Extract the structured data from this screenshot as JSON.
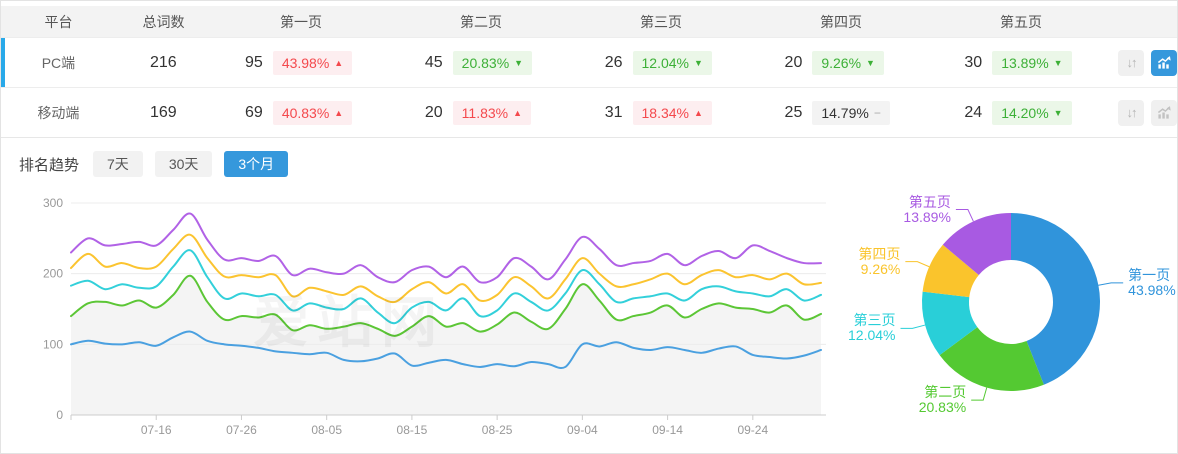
{
  "table": {
    "headers": [
      "平台",
      "总词数",
      "第一页",
      "第二页",
      "第三页",
      "第四页",
      "第五页"
    ],
    "sort_icon_glyph": "↓↑",
    "rows": [
      {
        "platform": "PC端",
        "total": "216",
        "chart_active": true,
        "pages": [
          {
            "count": "95",
            "pct": "43.98%",
            "arrow": "▲",
            "trend": "up"
          },
          {
            "count": "45",
            "pct": "20.83%",
            "arrow": "▼",
            "trend": "down"
          },
          {
            "count": "26",
            "pct": "12.04%",
            "arrow": "▼",
            "trend": "down"
          },
          {
            "count": "20",
            "pct": "9.26%",
            "arrow": "▼",
            "trend": "down"
          },
          {
            "count": "30",
            "pct": "13.89%",
            "arrow": "▼",
            "trend": "down"
          }
        ]
      },
      {
        "platform": "移动端",
        "total": "169",
        "chart_active": false,
        "pages": [
          {
            "count": "69",
            "pct": "40.83%",
            "arrow": "▲",
            "trend": "up"
          },
          {
            "count": "20",
            "pct": "11.83%",
            "arrow": "▲",
            "trend": "up"
          },
          {
            "count": "31",
            "pct": "18.34%",
            "arrow": "▲",
            "trend": "up"
          },
          {
            "count": "25",
            "pct": "14.79%",
            "arrow": "−",
            "trend": "flat"
          },
          {
            "count": "24",
            "pct": "14.20%",
            "arrow": "▼",
            "trend": "down"
          }
        ]
      }
    ]
  },
  "trend": {
    "label": "排名趋势",
    "tabs": [
      {
        "label": "7天",
        "active": false
      },
      {
        "label": "30天",
        "active": false
      },
      {
        "label": "3个月",
        "active": true
      }
    ]
  },
  "watermark": "爱站网",
  "chart_data": [
    {
      "type": "line",
      "title": "排名趋势 3个月",
      "ylim": [
        0,
        300
      ],
      "y_ticks": [
        0,
        100,
        200,
        300
      ],
      "grid": "horizontal",
      "x_labels": [
        "07-16",
        "07-26",
        "08-05",
        "08-15",
        "08-25",
        "09-04",
        "09-14",
        "09-24"
      ],
      "x_label_indices": [
        5,
        10,
        15,
        20,
        25,
        30,
        35,
        40
      ],
      "series": [
        {
          "name": "第一页",
          "color": "#4aa0e0",
          "area": false,
          "values": [
            100,
            105,
            101,
            100,
            103,
            98,
            110,
            118,
            105,
            100,
            98,
            95,
            90,
            88,
            86,
            88,
            78,
            76,
            80,
            87,
            70,
            74,
            78,
            72,
            68,
            72,
            69,
            75,
            72,
            68,
            100,
            97,
            103,
            95,
            92,
            96,
            92,
            88,
            94,
            97,
            85,
            82,
            80,
            84,
            92
          ]
        },
        {
          "name": "第二页",
          "color": "#5cc636",
          "area": true,
          "values": [
            140,
            158,
            160,
            155,
            162,
            152,
            170,
            197,
            160,
            135,
            140,
            138,
            142,
            120,
            127,
            122,
            125,
            130,
            122,
            112,
            125,
            140,
            125,
            130,
            118,
            128,
            145,
            132,
            122,
            150,
            185,
            162,
            135,
            140,
            145,
            155,
            138,
            150,
            158,
            152,
            150,
            145,
            155,
            135,
            143
          ]
        },
        {
          "name": "第三页",
          "color": "#33d0da",
          "area": false,
          "values": [
            183,
            190,
            178,
            185,
            180,
            182,
            210,
            233,
            195,
            165,
            172,
            168,
            170,
            148,
            158,
            152,
            150,
            165,
            145,
            130,
            152,
            160,
            148,
            165,
            140,
            148,
            172,
            160,
            148,
            172,
            205,
            185,
            160,
            165,
            168,
            172,
            162,
            178,
            182,
            175,
            172,
            168,
            178,
            162,
            170
          ]
        },
        {
          "name": "第四页",
          "color": "#fbc430",
          "area": false,
          "values": [
            208,
            228,
            210,
            215,
            208,
            210,
            235,
            255,
            222,
            196,
            198,
            195,
            198,
            168,
            180,
            175,
            170,
            182,
            168,
            160,
            178,
            188,
            172,
            185,
            162,
            170,
            195,
            182,
            165,
            192,
            222,
            200,
            182,
            185,
            192,
            200,
            185,
            198,
            205,
            195,
            198,
            192,
            200,
            185,
            187
          ]
        },
        {
          "name": "第五页",
          "color": "#b162e6",
          "area": false,
          "values": [
            230,
            250,
            240,
            242,
            245,
            240,
            262,
            285,
            248,
            220,
            222,
            218,
            225,
            198,
            207,
            202,
            200,
            212,
            195,
            188,
            205,
            210,
            195,
            210,
            188,
            195,
            222,
            210,
            192,
            220,
            252,
            235,
            212,
            215,
            218,
            228,
            212,
            225,
            232,
            222,
            240,
            232,
            222,
            215,
            215
          ]
        }
      ]
    },
    {
      "type": "pie",
      "donut": true,
      "slices": [
        {
          "name": "第一页",
          "value": 43.98,
          "pct": "43.98%",
          "color": "#3094db"
        },
        {
          "name": "第二页",
          "value": 20.83,
          "pct": "20.83%",
          "color": "#54c932"
        },
        {
          "name": "第三页",
          "value": 12.04,
          "pct": "12.04%",
          "color": "#29cfd8"
        },
        {
          "name": "第四页",
          "value": 9.26,
          "pct": "9.26%",
          "color": "#fac42c"
        },
        {
          "name": "第五页",
          "value": 13.89,
          "pct": "13.89%",
          "color": "#a85ae2"
        }
      ]
    }
  ]
}
